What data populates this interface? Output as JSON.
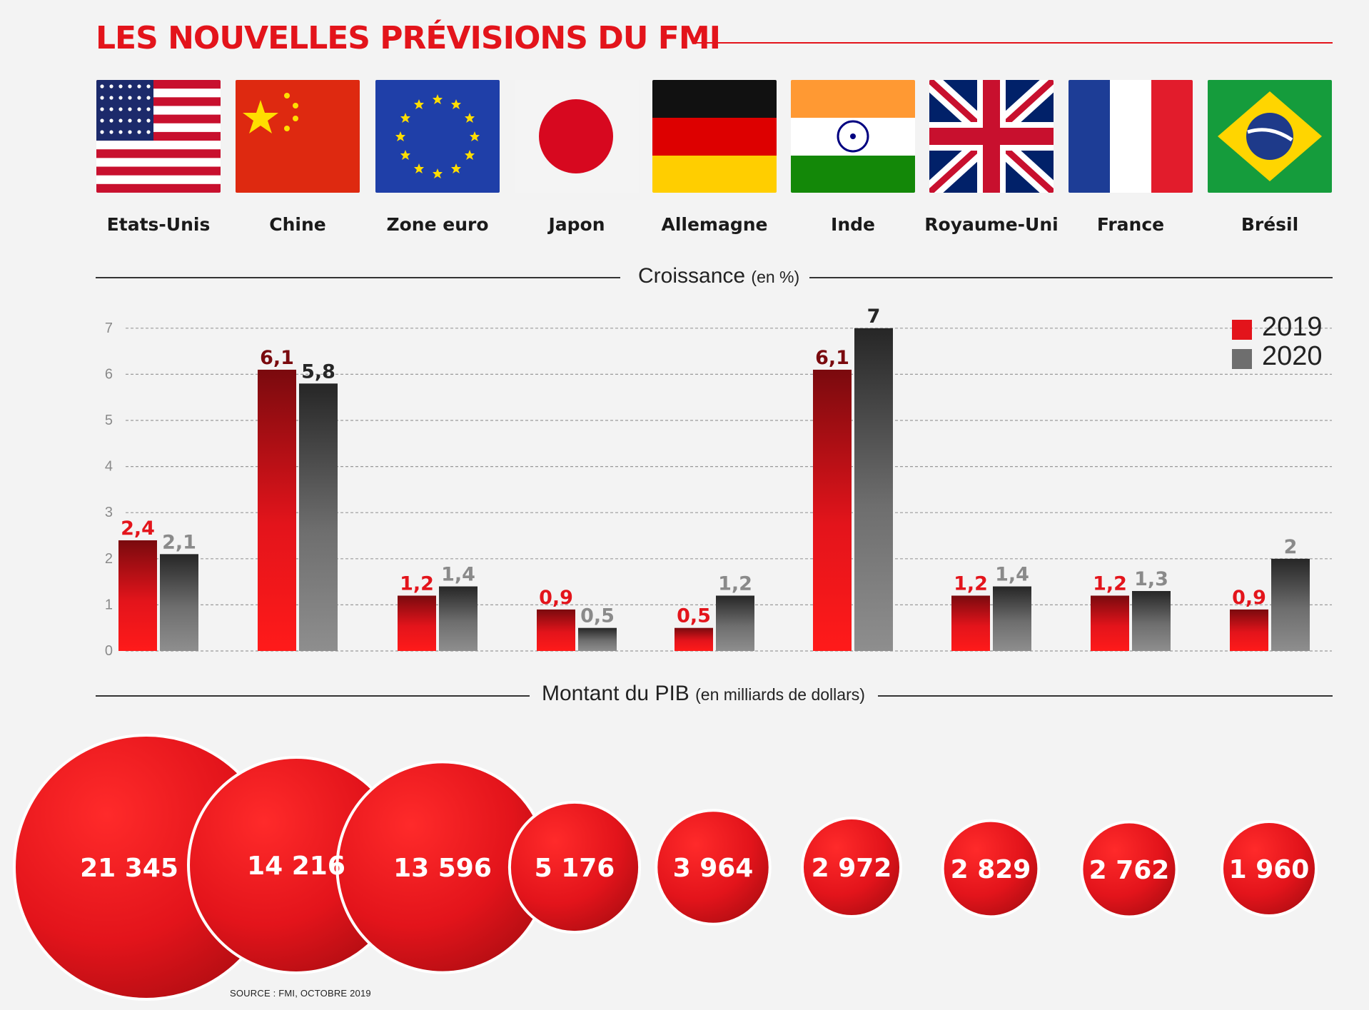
{
  "title": "LES NOUVELLES PRÉVISIONS DU FMI",
  "countries": [
    {
      "name": "Etats-Unis",
      "flag": "us-flag-icon"
    },
    {
      "name": "Chine",
      "flag": "china-flag-icon"
    },
    {
      "name": "Zone euro",
      "flag": "eu-flag-icon"
    },
    {
      "name": "Japon",
      "flag": "japan-flag-icon"
    },
    {
      "name": "Allemagne",
      "flag": "germany-flag-icon"
    },
    {
      "name": "Inde",
      "flag": "india-flag-icon"
    },
    {
      "name": "Royaume-Uni",
      "flag": "uk-flag-icon"
    },
    {
      "name": "France",
      "flag": "france-flag-icon"
    },
    {
      "name": "Brésil",
      "flag": "brazil-flag-icon"
    }
  ],
  "growth_section": {
    "label": "Croissance",
    "unit": "(en %)"
  },
  "gdp_section": {
    "label": "Montant du PIB",
    "unit": "(en milliards de dollars)"
  },
  "legend": {
    "first": "2019",
    "second": "2020"
  },
  "colors": {
    "y2019": "#e3141b",
    "y2020": "#6e6e6e",
    "y2019_dark": "#7a0a0e",
    "y2020_dark": "#262626",
    "label_gray": "#8a8a8a",
    "title": "#e3141b"
  },
  "source": "SOURCE : FMI, OCTOBRE 2019",
  "chart_data": [
    {
      "type": "bar",
      "title": "Croissance (en %)",
      "categories": [
        "Etats-Unis",
        "Chine",
        "Zone euro",
        "Japon",
        "Allemagne",
        "Inde",
        "Royaume-Uni",
        "France",
        "Brésil"
      ],
      "series": [
        {
          "name": "2019",
          "values": [
            2.4,
            6.1,
            1.2,
            0.9,
            0.5,
            6.1,
            1.2,
            1.2,
            0.9
          ],
          "labels": [
            "2,4",
            "6,1",
            "1,2",
            "0,9",
            "0,5",
            "6,1",
            "1,2",
            "1,2",
            "0,9"
          ]
        },
        {
          "name": "2020",
          "values": [
            2.1,
            5.8,
            1.4,
            0.5,
            1.2,
            7,
            1.4,
            1.3,
            2
          ],
          "labels": [
            "2,1",
            "5,8",
            "1,4",
            "0,5",
            "1,2",
            "7",
            "1,4",
            "1,3",
            "2"
          ]
        }
      ],
      "ylim": [
        0,
        7
      ],
      "yticks": [
        "0",
        "1",
        "2",
        "3",
        "4",
        "5",
        "6",
        "7"
      ],
      "grid": true,
      "legend_position": "top-right"
    },
    {
      "type": "bubble",
      "title": "Montant du PIB (en milliards de dollars)",
      "categories": [
        "Etats-Unis",
        "Chine",
        "Zone euro",
        "Japon",
        "Allemagne",
        "Inde",
        "Royaume-Uni",
        "France",
        "Brésil"
      ],
      "values": [
        21345,
        14216,
        13596,
        5176,
        3964,
        2972,
        2829,
        2762,
        1960
      ],
      "labels": [
        "21 345",
        "14 216",
        "13 596",
        "5 176",
        "3 964",
        "2 972",
        "2 829",
        "2 762",
        "1 960"
      ]
    }
  ]
}
